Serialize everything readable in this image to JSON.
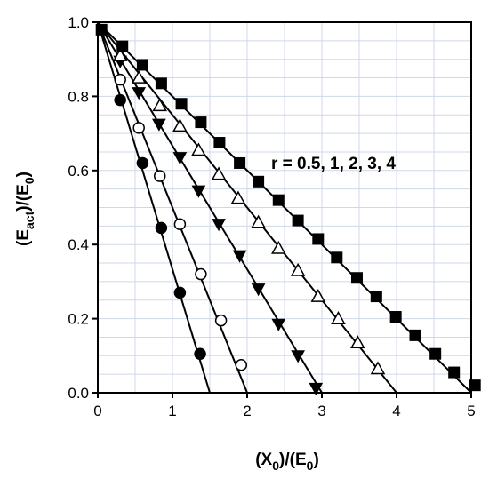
{
  "chart_data": {
    "type": "scatter",
    "x_label_main": "(X",
    "x_label_sub": "0",
    "x_label_mid": ")/(E",
    "x_label_sub2": "0",
    "x_label_end": ")",
    "y_label_main": "(E",
    "y_label_sub": "act",
    "y_label_mid": ")/(E",
    "y_label_sub2": "0",
    "y_label_end": ")",
    "annotation": "r = 0.5, 1, 2, 3, 4",
    "xlim": [
      0,
      5
    ],
    "ylim": [
      0,
      1.0
    ],
    "x_ticks": [
      0,
      1,
      2,
      3,
      4,
      5
    ],
    "x_tick_labels": [
      "0",
      "1",
      "2",
      "3",
      "4",
      "5"
    ],
    "y_ticks": [
      0,
      0.2,
      0.4,
      0.6,
      0.8,
      1.0
    ],
    "y_tick_labels": [
      "0.0",
      "0.2",
      "0.4",
      "0.6",
      "0.8",
      "1.0"
    ],
    "grid": true,
    "series": [
      {
        "marker": "filled-circle",
        "line": {
          "x": [
            0,
            1.5
          ],
          "y": [
            1.0,
            0.0
          ]
        },
        "points": {
          "x": [
            0.3,
            0.6,
            0.85,
            1.1,
            1.37
          ],
          "y": [
            0.79,
            0.62,
            0.445,
            0.27,
            0.105
          ]
        }
      },
      {
        "marker": "open-circle",
        "line": {
          "x": [
            0,
            2.0
          ],
          "y": [
            1.0,
            0.0
          ]
        },
        "points": {
          "x": [
            0.3,
            0.55,
            0.83,
            1.1,
            1.38,
            1.65,
            1.92
          ],
          "y": [
            0.845,
            0.715,
            0.585,
            0.455,
            0.32,
            0.195,
            0.075
          ]
        }
      },
      {
        "marker": "filled-triangle-down",
        "line": {
          "x": [
            0,
            3.0
          ],
          "y": [
            1.0,
            0.0
          ]
        },
        "points": {
          "x": [
            0.3,
            0.55,
            0.82,
            1.1,
            1.35,
            1.62,
            1.9,
            2.15,
            2.42,
            2.68,
            2.92
          ],
          "y": [
            0.895,
            0.81,
            0.725,
            0.635,
            0.545,
            0.455,
            0.37,
            0.28,
            0.185,
            0.1,
            0.012
          ]
        }
      },
      {
        "marker": "open-triangle-up",
        "line": {
          "x": [
            0,
            4.0
          ],
          "y": [
            1.0,
            0.0
          ]
        },
        "points": {
          "x": [
            0.3,
            0.55,
            0.83,
            1.1,
            1.35,
            1.62,
            1.88,
            2.15,
            2.42,
            2.68,
            2.95,
            3.22,
            3.48,
            3.75
          ],
          "y": [
            0.91,
            0.85,
            0.775,
            0.72,
            0.655,
            0.59,
            0.525,
            0.46,
            0.39,
            0.33,
            0.26,
            0.2,
            0.135,
            0.065
          ]
        }
      },
      {
        "marker": "filled-square",
        "line": {
          "x": [
            0,
            5.0
          ],
          "y": [
            1.0,
            0.0
          ]
        },
        "points": {
          "x": [
            0.05,
            0.33,
            0.6,
            0.85,
            1.12,
            1.38,
            1.63,
            1.9,
            2.15,
            2.42,
            2.68,
            2.95,
            3.2,
            3.47,
            3.73,
            3.99,
            4.25,
            4.52,
            4.77,
            5.05
          ],
          "y": [
            0.98,
            0.935,
            0.885,
            0.835,
            0.78,
            0.73,
            0.675,
            0.62,
            0.57,
            0.52,
            0.465,
            0.415,
            0.365,
            0.31,
            0.26,
            0.205,
            0.155,
            0.105,
            0.055,
            0.02
          ]
        }
      }
    ]
  }
}
